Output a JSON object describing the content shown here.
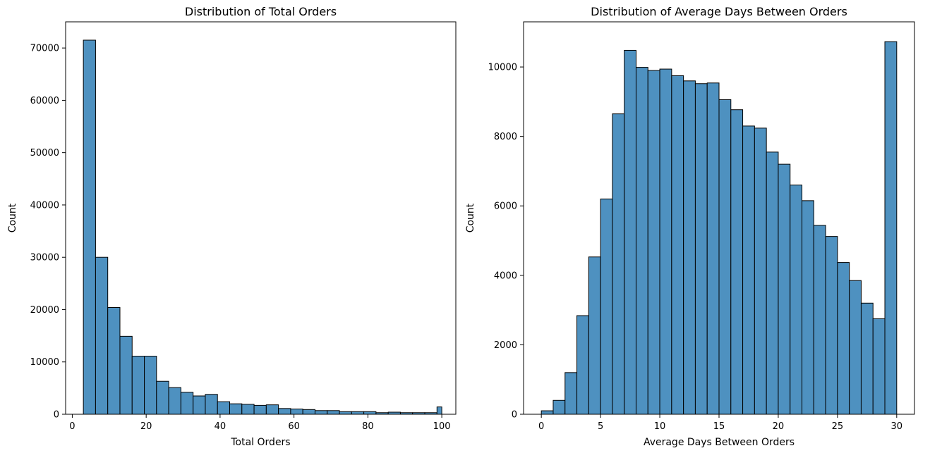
{
  "colors": {
    "bar_fill": "#4e91c0",
    "bar_edge": "#000000",
    "axis": "#000000",
    "background": "#ffffff"
  },
  "chart_data": [
    {
      "type": "bar",
      "title": "Distribution of Total Orders",
      "xlabel": "Total Orders",
      "ylabel": "Count",
      "xlim": [
        -1.8,
        103.8
      ],
      "ylim": [
        0,
        75000
      ],
      "grid": false,
      "xticks": [
        0,
        20,
        40,
        60,
        80,
        100
      ],
      "yticks": [
        0,
        10000,
        20000,
        30000,
        40000,
        50000,
        60000,
        70000
      ],
      "bin_edges": [
        3,
        6.3,
        9.6,
        12.9,
        16.2,
        19.5,
        22.8,
        26.1,
        29.4,
        32.7,
        36,
        39.3,
        42.6,
        45.9,
        49.2,
        52.5,
        55.8,
        59.1,
        62.4,
        65.7,
        69,
        72.3,
        75.6,
        78.9,
        82.2,
        85.5,
        88.8,
        92.1,
        95.4,
        98.7,
        100
      ],
      "values": [
        71500,
        30000,
        20400,
        14900,
        11100,
        11100,
        6300,
        5100,
        4200,
        3500,
        3800,
        2400,
        2000,
        1900,
        1700,
        1800,
        1100,
        1000,
        900,
        700,
        700,
        500,
        500,
        500,
        300,
        400,
        300,
        300,
        300,
        1400
      ]
    },
    {
      "type": "bar",
      "title": "Distribution of Average Days Between Orders",
      "xlabel": "Average Days Between Orders",
      "ylabel": "Count",
      "xlim": [
        -1.5,
        31.5
      ],
      "ylim": [
        0,
        11300
      ],
      "grid": false,
      "xticks": [
        0,
        5,
        10,
        15,
        20,
        25,
        30
      ],
      "yticks": [
        0,
        2000,
        4000,
        6000,
        8000,
        10000
      ],
      "bin_edges": [
        0,
        1,
        2,
        3,
        4,
        5,
        6,
        7,
        8,
        9,
        10,
        11,
        12,
        13,
        14,
        15,
        16,
        17,
        18,
        19,
        20,
        21,
        22,
        23,
        24,
        25,
        26,
        27,
        28,
        29,
        30
      ],
      "values": [
        100,
        400,
        1200,
        2840,
        4530,
        6200,
        8650,
        10480,
        9990,
        9900,
        9940,
        9750,
        9600,
        9520,
        9540,
        9060,
        8770,
        8300,
        8240,
        7550,
        7200,
        6600,
        6150,
        5440,
        5120,
        4370,
        3850,
        3200,
        2750,
        10730
      ]
    }
  ]
}
